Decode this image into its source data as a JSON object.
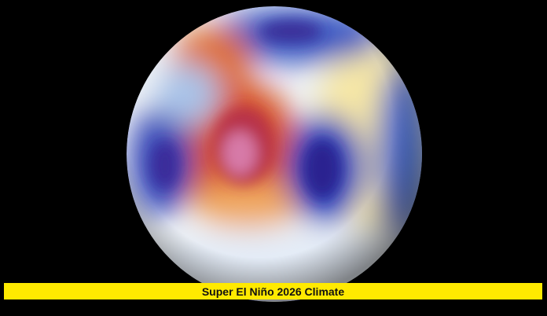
{
  "caption": "Super El Niño 2026 Climate"
}
